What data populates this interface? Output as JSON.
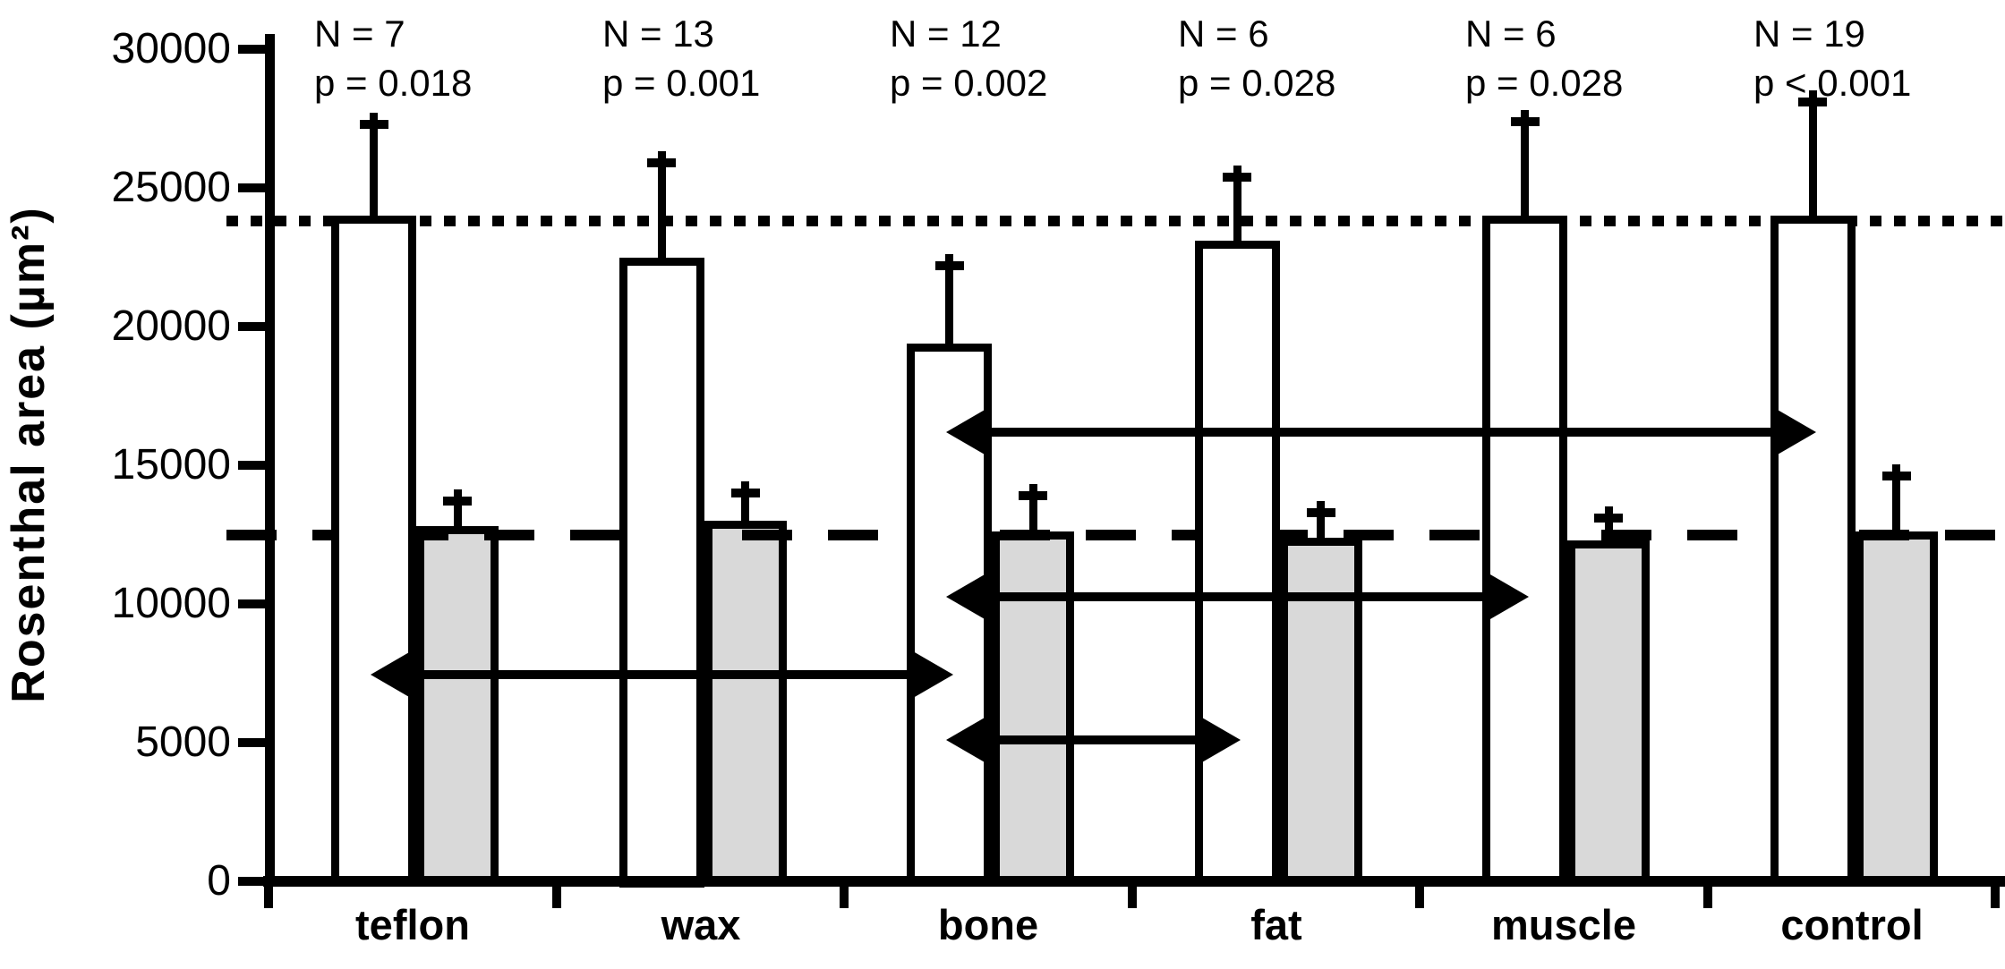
{
  "figure": {
    "kind": "grouped bar chart with error bars, reference lines and significance arrows",
    "background": "#ffffff",
    "ink_color": "#000000"
  },
  "chart_data": {
    "type": "bar",
    "title": "",
    "xlabel": "",
    "ylabel": "Rosenthal area (µm²)",
    "ylim": [
      0,
      30000
    ],
    "ytick_step": 5000,
    "grid": false,
    "legend": "none",
    "categories": [
      "teflon",
      "wax",
      "bone",
      "fat",
      "muscle",
      "control"
    ],
    "series": [
      {
        "name": "white bars",
        "fill": "#ffffff",
        "values": [
          24000,
          22500,
          19400,
          23100,
          24000,
          24000
        ],
        "errors_up": [
          3300,
          3400,
          2800,
          2300,
          3400,
          4100
        ]
      },
      {
        "name": "gray bars",
        "fill": "#d9d9d9",
        "values": [
          12800,
          13000,
          12600,
          12400,
          12300,
          12600
        ],
        "errors_up": [
          900,
          1000,
          1300,
          900,
          800,
          2000
        ]
      }
    ],
    "annotations": [
      {
        "n": "N = 7",
        "p": "p = 0.018"
      },
      {
        "n": "N = 13",
        "p": "p = 0.001"
      },
      {
        "n": "N = 12",
        "p": "p = 0.002"
      },
      {
        "n": "N = 6",
        "p": "p = 0.028"
      },
      {
        "n": "N = 6",
        "p": "p = 0.028"
      },
      {
        "n": "N = 19",
        "p": "p < 0.001"
      }
    ],
    "reference_lines": [
      {
        "style": "dotted",
        "value": 23800
      },
      {
        "style": "dashed",
        "value": 12500
      }
    ],
    "comparison_arrows": [
      {
        "from": "bone",
        "to": "control",
        "value": 16200
      },
      {
        "from": "bone",
        "to": "muscle",
        "value": 10250
      },
      {
        "from": "teflon",
        "to": "bone",
        "value": 7450
      },
      {
        "from": "bone",
        "to": "fat",
        "value": 5100
      }
    ]
  }
}
